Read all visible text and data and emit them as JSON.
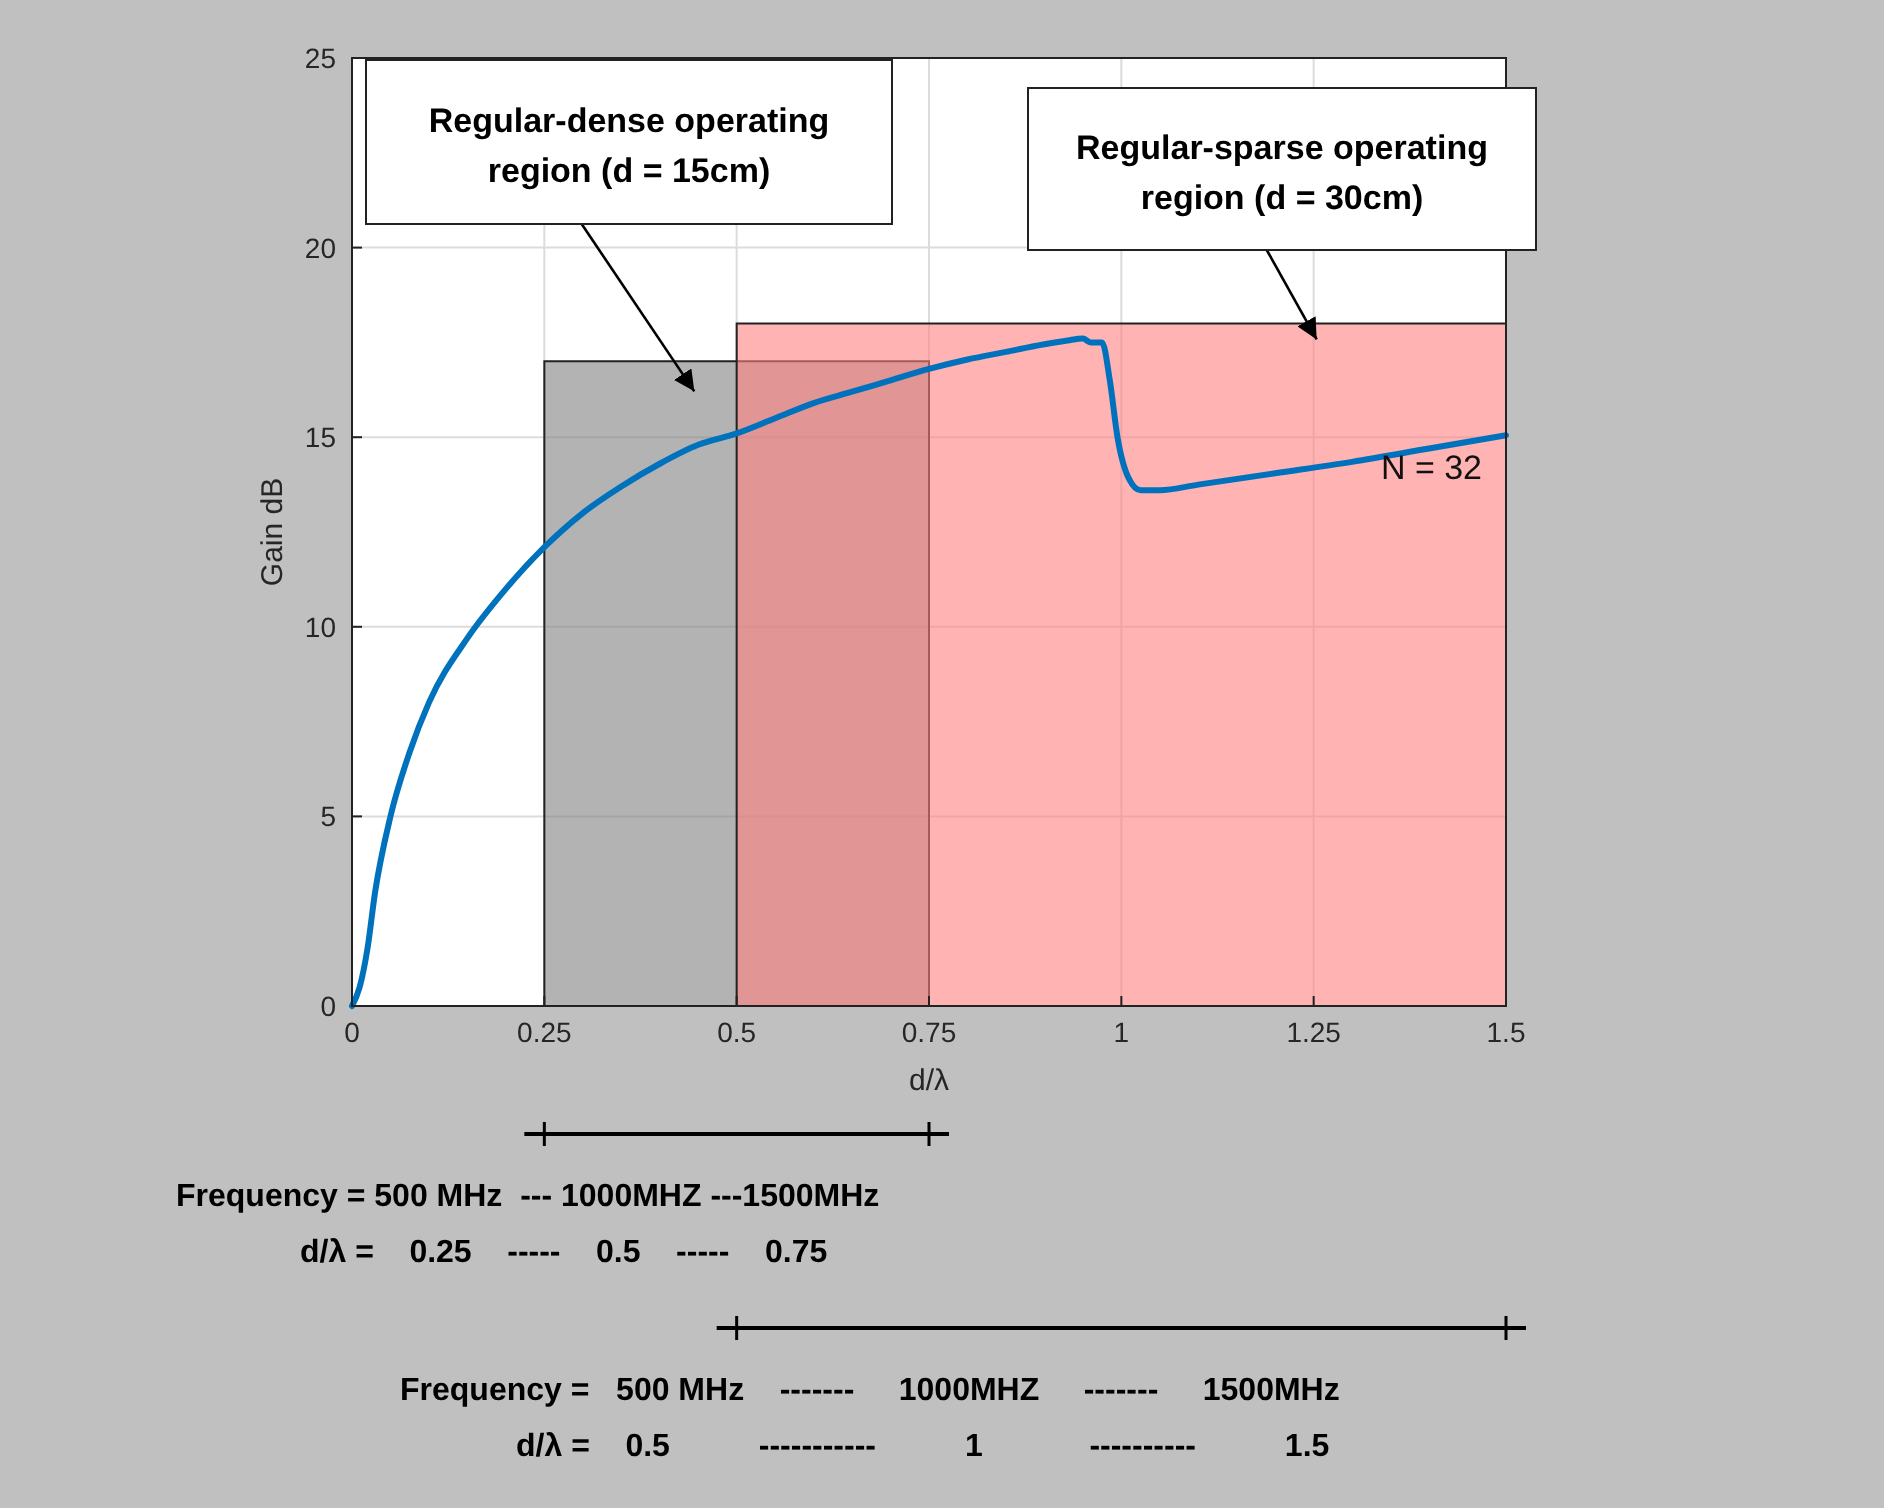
{
  "chart_data": {
    "type": "line",
    "xlabel": "d/λ",
    "ylabel": "Gain dB",
    "xlim": [
      0,
      1.5
    ],
    "xticks": [
      0,
      0.25,
      0.5,
      0.75,
      1,
      1.25,
      1.5
    ],
    "ylim": [
      0,
      25
    ],
    "yticks": [
      0,
      5,
      10,
      15,
      20,
      25
    ],
    "grid": true,
    "series": [
      {
        "type": "area",
        "color": "#808080",
        "x": [
          0.25,
          0.75
        ],
        "values": [
          17,
          17
        ]
      },
      {
        "type": "area",
        "color": "#ff8080",
        "x": [
          0.5,
          1.5
        ],
        "values": [
          18,
          18
        ]
      },
      {
        "name": "N = 32",
        "color": "#0072bd",
        "x": [
          0,
          0.01,
          0.02,
          0.03,
          0.05,
          0.075,
          0.1,
          0.15,
          0.2,
          0.25,
          0.3,
          0.35,
          0.4,
          0.45,
          0.5,
          0.55,
          0.6,
          0.65,
          0.7,
          0.75,
          0.8,
          0.85,
          0.9,
          0.93,
          0.95,
          0.96,
          0.975,
          0.985,
          0.995,
          1.01,
          1.025,
          1.05,
          1.1,
          1.2,
          1.3,
          1.4,
          1.5
        ],
        "values": [
          0,
          0.5,
          1.5,
          3,
          5,
          6.7,
          8,
          9.7,
          11,
          12.1,
          13,
          13.7,
          14.3,
          14.8,
          15.1,
          15.5,
          15.9,
          16.2,
          16.5,
          16.8,
          17.05,
          17.25,
          17.45,
          17.55,
          17.6,
          17.5,
          17.5,
          16.5,
          15,
          13.9,
          13.6,
          13.6,
          13.75,
          14.05,
          14.35,
          14.7,
          15.05
        ]
      }
    ],
    "annotations": [
      "Regular-dense operating region (d = 15cm)",
      "Regular-sparse operating region (d = 30cm)",
      "Frequency = 500 MHz  --- 1000MHZ ---1500MHz",
      "d/λ =    0.25    -----    0.5    -----    0.75",
      "Frequency =   500 MHz    -------     1000MHZ     -------     1500MHz",
      "d/λ =    0.5          -----------          1            ----------          1.5"
    ]
  }
}
